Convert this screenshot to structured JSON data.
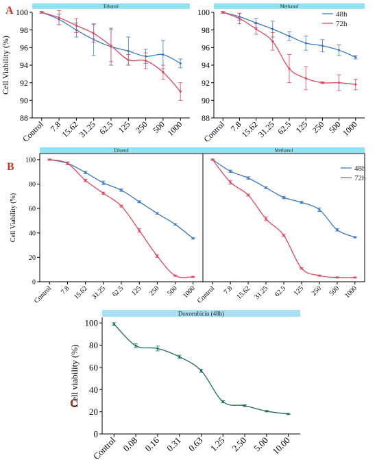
{
  "colors": {
    "s48": "#3b78c4",
    "s72": "#e0455e",
    "doxo": "#1e6a5e",
    "strip": "#8fe3f2",
    "strip_doxo": "#a9e0f3",
    "panel_a": "#c0392b",
    "panel_b": "#c0392b",
    "panel_c": "#8b3a2a"
  },
  "chart_data": [
    {
      "id": "A-ethanol",
      "panel_letter": "A",
      "type": "line",
      "title": "Ethanol",
      "ylabel": "Cell Viability (%)",
      "ylim": [
        88,
        100
      ],
      "yticks": [
        88,
        90,
        92,
        94,
        96,
        98,
        100
      ],
      "categories": [
        "Control",
        "7.8",
        "15.62",
        "31.25",
        "62.5",
        "125",
        "250",
        "500",
        "1000"
      ],
      "series": [
        {
          "key": "s48",
          "values": [
            100,
            99.2,
            98.0,
            96.9,
            96.1,
            95.6,
            95.0,
            95.2,
            94.2
          ],
          "err": [
            0.1,
            0.6,
            0.8,
            1.8,
            2.1,
            1.6,
            0.8,
            1.6,
            0.5
          ]
        },
        {
          "key": "s72",
          "values": [
            100,
            99.4,
            98.5,
            97.6,
            96.2,
            94.6,
            94.5,
            93.2,
            91.0
          ],
          "err": [
            0.1,
            0.8,
            0.8,
            1.0,
            1.8,
            0.6,
            0.9,
            0.8,
            1.0
          ]
        }
      ]
    },
    {
      "id": "A-methanol",
      "type": "line",
      "title": "Methanol",
      "ylabel": "",
      "ylim": [
        88,
        100
      ],
      "yticks": [
        88,
        90,
        92,
        94,
        96,
        98,
        100
      ],
      "categories": [
        "Control",
        "7.8",
        "15.62",
        "31.25",
        "62.5",
        "125",
        "250",
        "500",
        "1000"
      ],
      "legend": [
        {
          "key": "s48",
          "label": "48h"
        },
        {
          "key": "s72",
          "label": "72h"
        }
      ],
      "series": [
        {
          "key": "s48",
          "values": [
            100,
            99.5,
            98.8,
            98.1,
            97.3,
            96.5,
            96.2,
            95.7,
            94.9
          ],
          "err": [
            0.1,
            0.4,
            0.5,
            0.9,
            0.5,
            0.8,
            0.7,
            0.6,
            0.2
          ]
        },
        {
          "key": "s72",
          "values": [
            100,
            99.3,
            98.1,
            96.7,
            93.6,
            92.5,
            92.0,
            92.0,
            91.8
          ],
          "err": [
            0.1,
            0.6,
            0.6,
            1.0,
            1.6,
            1.3,
            0.1,
            0.9,
            0.6
          ]
        }
      ]
    },
    {
      "id": "B-ethanol",
      "panel_letter": "B",
      "type": "line",
      "title": "Ethanol",
      "ylabel": "Cell Viability (%)",
      "ylim": [
        0,
        105
      ],
      "yticks": [
        0,
        20,
        40,
        60,
        80,
        100
      ],
      "categories": [
        "Control",
        "7.8",
        "15.62",
        "31.25",
        "62.5",
        "125",
        "250",
        "500",
        "1000"
      ],
      "series": [
        {
          "key": "s48",
          "values": [
            100,
            97,
            89.5,
            81,
            75,
            65.5,
            56,
            47,
            35.5
          ],
          "err": [
            0.5,
            1.2,
            1.0,
            1.5,
            1.0,
            0.8,
            0.7,
            0.6,
            0.6
          ]
        },
        {
          "key": "s72",
          "values": [
            100,
            97,
            83,
            72.5,
            62,
            42,
            21,
            5,
            4
          ],
          "err": [
            0.5,
            1.0,
            1.0,
            1.0,
            0.8,
            1.5,
            1.0,
            0.5,
            0.5
          ]
        }
      ]
    },
    {
      "id": "B-methanol",
      "type": "line",
      "title": "Methanol",
      "ylabel": "",
      "ylim": [
        0,
        105
      ],
      "yticks": [],
      "categories": [
        "Control",
        "7.8",
        "15.62",
        "31.25",
        "62.5",
        "125",
        "250",
        "500",
        "1000"
      ],
      "legend": [
        {
          "key": "s48",
          "label": "48h"
        },
        {
          "key": "s72",
          "label": "72h"
        }
      ],
      "series": [
        {
          "key": "s48",
          "values": [
            100,
            90.5,
            85,
            77,
            69,
            65,
            59,
            42.5,
            36.5
          ],
          "err": [
            0.5,
            1.0,
            1.0,
            0.8,
            1.0,
            0.8,
            1.5,
            1.0,
            0.6
          ]
        },
        {
          "key": "s72",
          "values": [
            100,
            81.5,
            71,
            51.5,
            38,
            11,
            5,
            3.5,
            3.5
          ],
          "err": [
            0.5,
            1.5,
            0.8,
            1.5,
            0.8,
            0.6,
            0.5,
            0.4,
            0.3
          ]
        }
      ]
    },
    {
      "id": "C-doxorubicin",
      "panel_letter": "C",
      "type": "line",
      "title": "Doxorubicin (48h)",
      "ylabel": "Cell viability (%)",
      "ylim": [
        0,
        105
      ],
      "yticks": [
        0,
        20,
        40,
        60,
        80,
        100
      ],
      "categories": [
        "Control",
        "0.08",
        "0.16",
        "0.31",
        "0.63",
        "1.25",
        "2.50",
        "5.00",
        "10.00"
      ],
      "series": [
        {
          "key": "doxo",
          "values": [
            99,
            79.5,
            77,
            69.5,
            57,
            29,
            25.5,
            20.5,
            18
          ],
          "err": [
            1.2,
            1.8,
            2.2,
            1.5,
            1.5,
            1.0,
            0.8,
            0.6,
            0.5
          ]
        }
      ]
    }
  ]
}
